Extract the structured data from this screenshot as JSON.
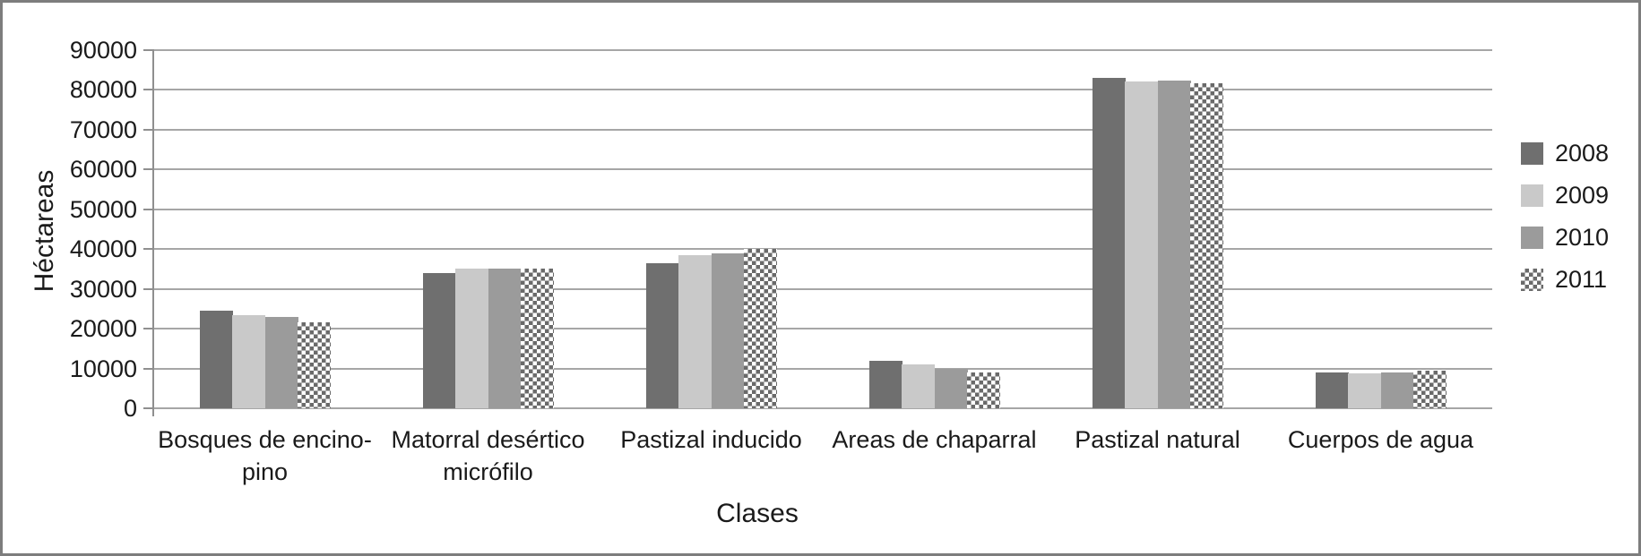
{
  "chart_data": {
    "type": "bar",
    "title": "",
    "xlabel": "Clases",
    "ylabel": "Héctareas",
    "ylim": [
      0,
      90000
    ],
    "ytick_step": 10000,
    "yticks": [
      "0",
      "10000",
      "20000",
      "30000",
      "40000",
      "50000",
      "60000",
      "70000",
      "80000",
      "90000"
    ],
    "grid": true,
    "legend_position": "right",
    "categories": [
      "Bosques de encino-pino",
      "Matorral desértico micrófilo",
      "Pastizal inducido",
      "Areas de chaparral",
      "Pastizal natural",
      "Cuerpos de agua"
    ],
    "categories_display": [
      [
        "Bosques de encino-",
        "pino"
      ],
      [
        "Matorral desértico",
        "micrófilo"
      ],
      [
        "Pastizal inducido"
      ],
      [
        "Areas de chaparral"
      ],
      [
        "Pastizal natural"
      ],
      [
        "Cuerpos de agua"
      ]
    ],
    "series": [
      {
        "name": "2008",
        "pattern": "solid",
        "color": "#6f6f6f",
        "values": [
          24500,
          34000,
          36500,
          12000,
          83000,
          9000
        ]
      },
      {
        "name": "2009",
        "pattern": "solid",
        "color": "#c9c9c9",
        "values": [
          23500,
          35000,
          38500,
          11000,
          82200,
          8800
        ]
      },
      {
        "name": "2010",
        "pattern": "solid",
        "color": "#9b9b9b",
        "values": [
          23000,
          35000,
          39000,
          10000,
          82400,
          9000
        ]
      },
      {
        "name": "2011",
        "pattern": "checker",
        "color": "#6a6a6a",
        "values": [
          21500,
          35000,
          40000,
          9000,
          81700,
          9500
        ]
      }
    ],
    "colors": {
      "gridline": "#a6a6a6",
      "axis": "#8f8f8f",
      "text": "#1a1a1a",
      "background": "#ffffff",
      "frame_border": "#7d7d7d"
    }
  }
}
